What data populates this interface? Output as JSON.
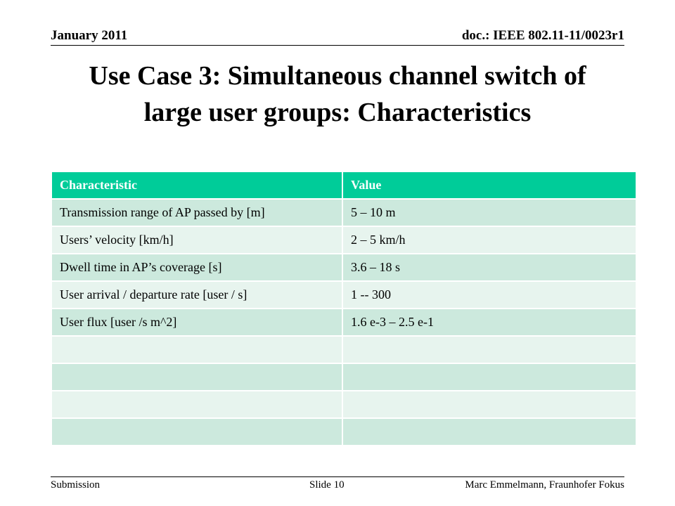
{
  "header": {
    "date": "January 2011",
    "doc_id": "doc.: IEEE 802.11-11/0023r1"
  },
  "title": {
    "line1": "Use Case 3: Simultaneous channel switch of",
    "line2": "large user groups: Characteristics"
  },
  "table": {
    "headers": [
      "Characteristic",
      "Value"
    ],
    "rows": [
      [
        "Transmission range of AP passed by [m]",
        "5 – 10 m"
      ],
      [
        "Users’ velocity [km/h]",
        "2 – 5 km/h"
      ],
      [
        "Dwell time in AP’s coverage [s]",
        "3.6 – 18 s"
      ],
      [
        "User arrival / departure rate [user / s]",
        "1 -- 300"
      ],
      [
        "User flux [user /s m^2]",
        "1.6 e-3 – 2.5 e-1"
      ],
      [
        "",
        ""
      ],
      [
        "",
        ""
      ],
      [
        "",
        ""
      ],
      [
        "",
        ""
      ]
    ]
  },
  "footer": {
    "left": "Submission",
    "center": "Slide 10",
    "right": "Marc Emmelmann, Fraunhofer Fokus"
  }
}
